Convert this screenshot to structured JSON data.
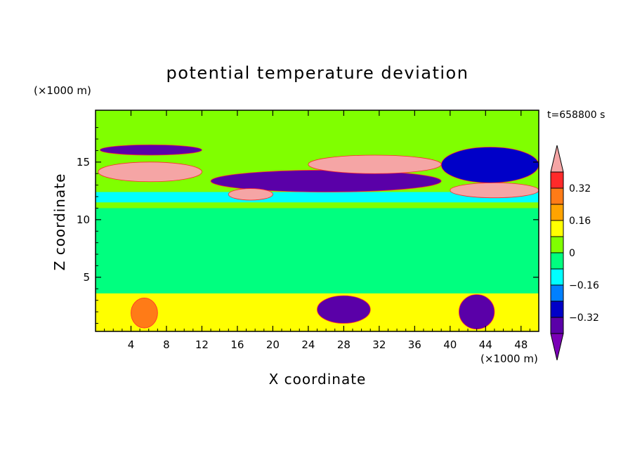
{
  "chart_data": {
    "type": "heatmap",
    "title": "potential temperature deviation",
    "xlabel": "X coordinate",
    "ylabel": "Z coordinate",
    "x_unit": "(×1000 m)",
    "y_unit": "(×1000 m)",
    "time_label": "t=658800 s",
    "xlim": [
      0,
      50
    ],
    "ylim": [
      0.3,
      19.5
    ],
    "x_ticks": [
      4,
      8,
      12,
      16,
      20,
      24,
      28,
      32,
      36,
      40,
      44,
      48
    ],
    "y_ticks": [
      5,
      10,
      15
    ],
    "colorbar": {
      "levels": [
        -0.4,
        -0.32,
        -0.24,
        -0.16,
        -0.08,
        0,
        0.08,
        0.16,
        0.24,
        0.32,
        0.4
      ],
      "labels": [
        "0.32",
        "0.16",
        "0",
        "−0.16",
        "−0.32"
      ],
      "label_values": [
        0.32,
        0.16,
        0,
        -0.16,
        -0.32
      ],
      "colors": [
        "#f5a5a5",
        "#ff2a2a",
        "#ff7b17",
        "#ffa300",
        "#ffff00",
        "#80ff00",
        "#00ff7f",
        "#00ffff",
        "#0080ff",
        "#0000c8",
        "#5a00a8",
        "#7a00b6"
      ]
    },
    "regions": [
      {
        "kind": "band",
        "x": [
          0,
          50
        ],
        "z": [
          3.5,
          11
        ],
        "level": -0.02
      },
      {
        "kind": "band",
        "x": [
          0,
          50
        ],
        "z": [
          16.5,
          19.5
        ],
        "level": 0.03
      },
      {
        "kind": "band",
        "x": [
          0,
          50
        ],
        "z": [
          11.5,
          12.4
        ],
        "level": -0.14
      },
      {
        "kind": "blob",
        "x": [
          0.5,
          12
        ],
        "z": [
          15.6,
          16.5
        ],
        "level": -0.35
      },
      {
        "kind": "blob",
        "x": [
          0.3,
          12
        ],
        "z": [
          13.3,
          15
        ],
        "level": 0.45
      },
      {
        "kind": "blob",
        "x": [
          13,
          39
        ],
        "z": [
          12.4,
          14.3
        ],
        "level": -0.35
      },
      {
        "kind": "blob",
        "x": [
          24,
          39
        ],
        "z": [
          14,
          15.6
        ],
        "level": 0.45
      },
      {
        "kind": "blob",
        "x": [
          40,
          50
        ],
        "z": [
          11.9,
          13.2
        ],
        "level": 0.45
      },
      {
        "kind": "blob",
        "x": [
          39,
          50
        ],
        "z": [
          13.2,
          16.3
        ],
        "level": -0.3
      },
      {
        "kind": "blob",
        "x": [
          15,
          20
        ],
        "z": [
          11.7,
          12.7
        ],
        "level": 0.45
      },
      {
        "kind": "band",
        "x": [
          0,
          50
        ],
        "z": [
          0.3,
          3.6
        ],
        "level": 0.1
      },
      {
        "kind": "blob",
        "x": [
          25,
          31
        ],
        "z": [
          1,
          3.4
        ],
        "level": -0.33
      },
      {
        "kind": "blob",
        "x": [
          41,
          45
        ],
        "z": [
          0.5,
          3.5
        ],
        "level": -0.33
      },
      {
        "kind": "blob",
        "x": [
          4,
          7
        ],
        "z": [
          0.6,
          3.2
        ],
        "level": 0.26
      }
    ]
  }
}
